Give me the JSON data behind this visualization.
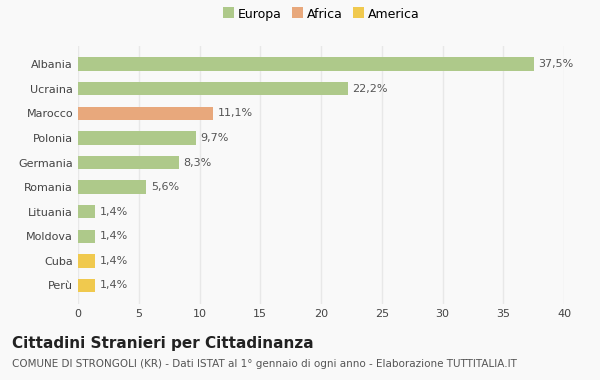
{
  "categories": [
    "Albania",
    "Ucraina",
    "Marocco",
    "Polonia",
    "Germania",
    "Romania",
    "Lituania",
    "Moldova",
    "Cuba",
    "Perù"
  ],
  "values": [
    37.5,
    22.2,
    11.1,
    9.7,
    8.3,
    5.6,
    1.4,
    1.4,
    1.4,
    1.4
  ],
  "labels": [
    "37,5%",
    "22,2%",
    "11,1%",
    "9,7%",
    "8,3%",
    "5,6%",
    "1,4%",
    "1,4%",
    "1,4%",
    "1,4%"
  ],
  "colors": [
    "#aec98a",
    "#aec98a",
    "#e8a87c",
    "#aec98a",
    "#aec98a",
    "#aec98a",
    "#aec98a",
    "#aec98a",
    "#f0c94e",
    "#f0c94e"
  ],
  "legend_labels": [
    "Europa",
    "Africa",
    "America"
  ],
  "legend_colors": [
    "#aec98a",
    "#e8a87c",
    "#f0c94e"
  ],
  "title": "Cittadini Stranieri per Cittadinanza",
  "subtitle": "COMUNE DI STRONGOLI (KR) - Dati ISTAT al 1° gennaio di ogni anno - Elaborazione TUTTITALIA.IT",
  "xlim": [
    0,
    40
  ],
  "xticks": [
    0,
    5,
    10,
    15,
    20,
    25,
    30,
    35,
    40
  ],
  "background_color": "#f9f9f9",
  "grid_color": "#e8e8e8",
  "bar_height": 0.55,
  "title_fontsize": 11,
  "subtitle_fontsize": 7.5,
  "label_fontsize": 8,
  "tick_fontsize": 8,
  "legend_fontsize": 9
}
